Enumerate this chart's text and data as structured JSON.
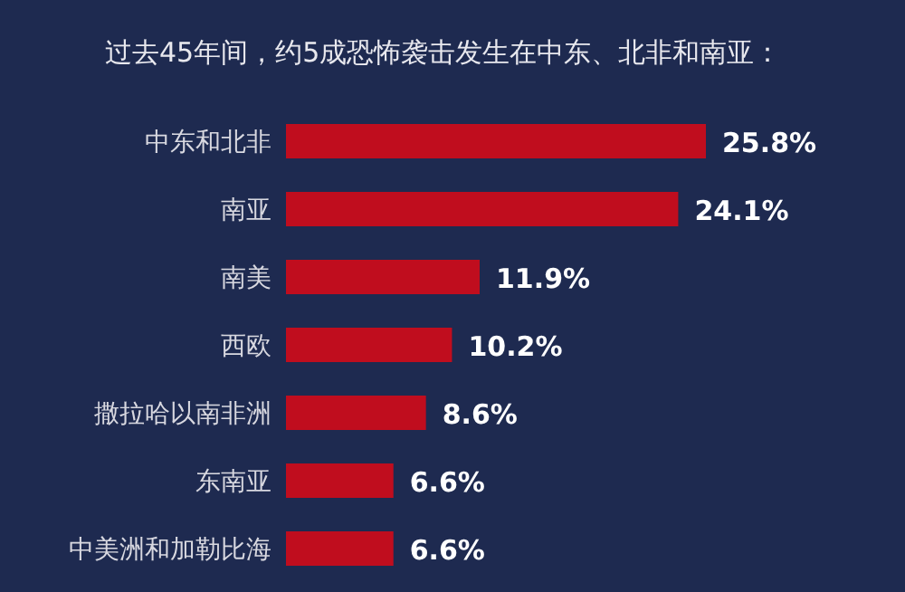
{
  "chart_data": {
    "type": "bar",
    "orientation": "horizontal",
    "title": "过去45年间，约5成恐怖袭击发生在中东、北非和南亚：",
    "categories": [
      "中东和北非",
      "南亚",
      "南美",
      "西欧",
      "撒拉哈以南非洲",
      "东南亚",
      "中美洲和加勒比海"
    ],
    "values": [
      25.8,
      24.1,
      11.9,
      10.2,
      8.6,
      6.6,
      6.6
    ],
    "value_labels": [
      "25.8%",
      "24.1%",
      "11.9%",
      "10.2%",
      "8.6%",
      "6.6%",
      "6.6%"
    ],
    "color": "#c00d1e"
  }
}
